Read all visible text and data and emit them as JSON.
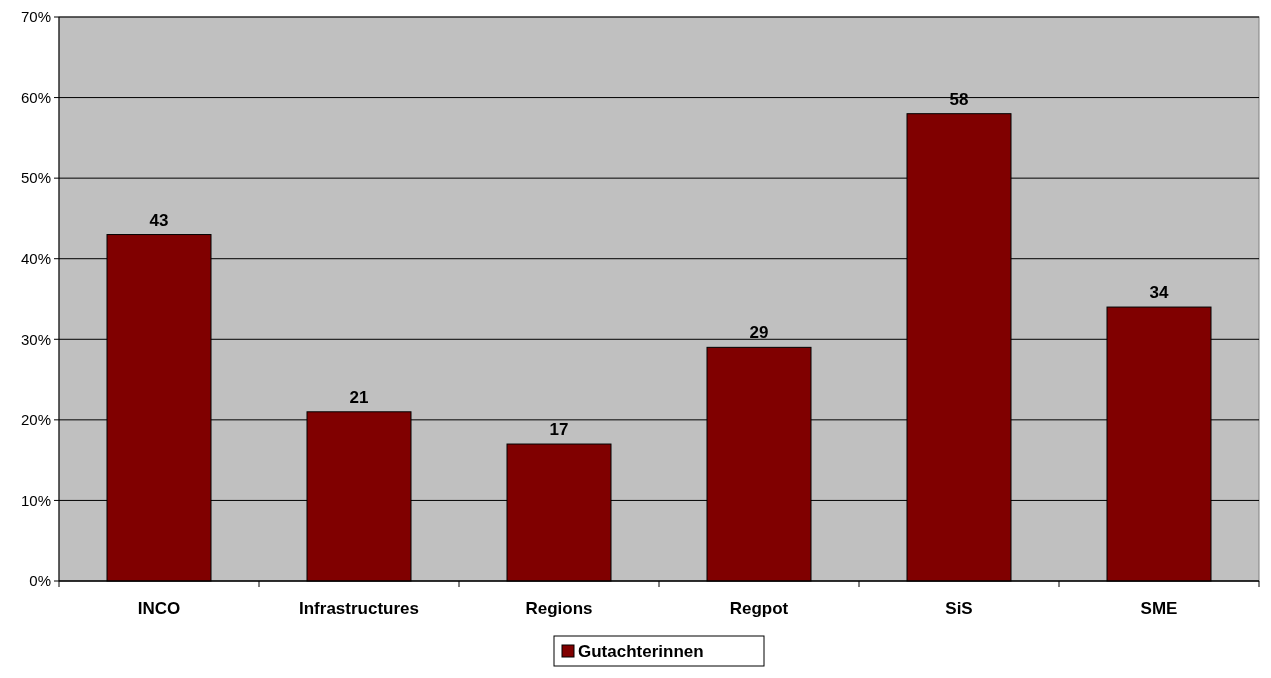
{
  "chart_data": {
    "type": "bar",
    "categories": [
      "INCO",
      "Infrastructures",
      "Regions",
      "Regpot",
      "SiS",
      "SME"
    ],
    "series": [
      {
        "name": "Gutachterinnen",
        "color": "#800000",
        "values": [
          43,
          21,
          17,
          29,
          58,
          34
        ]
      }
    ],
    "ylim": [
      0,
      70
    ],
    "yticks": [
      {
        "value": 0,
        "label": "0%"
      },
      {
        "value": 10,
        "label": "10%"
      },
      {
        "value": 20,
        "label": "20%"
      },
      {
        "value": 30,
        "label": "30%"
      },
      {
        "value": 40,
        "label": "40%"
      },
      {
        "value": 50,
        "label": "50%"
      },
      {
        "value": 60,
        "label": "60%"
      },
      {
        "value": 70,
        "label": "70%"
      }
    ],
    "grid": "y",
    "legend": "bottom",
    "data_labels": true
  }
}
